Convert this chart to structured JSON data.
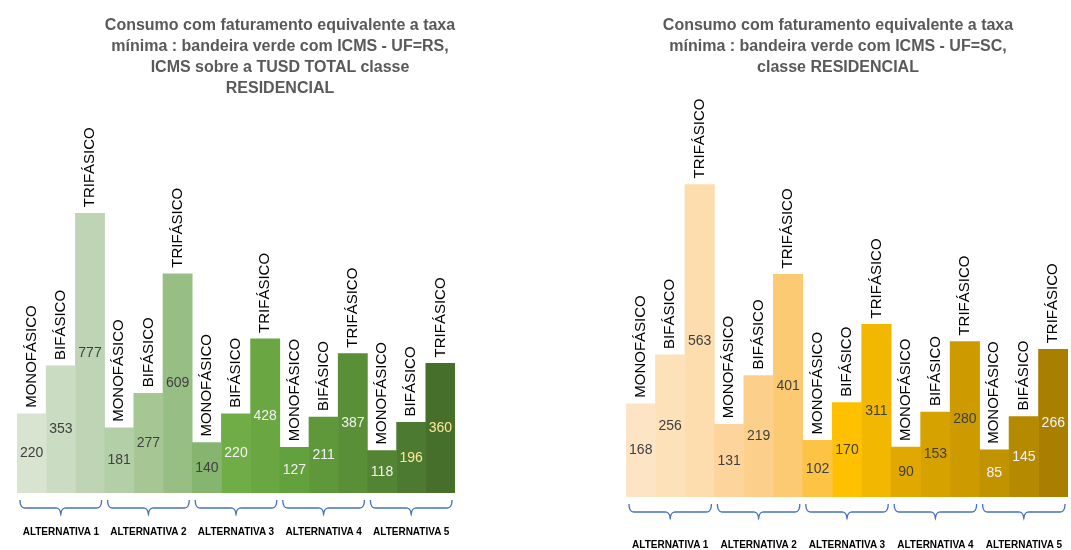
{
  "chart_data": [
    {
      "type": "bar",
      "title": "Consumo com faturamento equivalente a taxa mínima : bandeira verde com ICMS - UF=RS, ICMS sobre a TUSD TOTAL classe RESIDENCIAL",
      "categories": [
        "ALTERNATIVA 1",
        "ALTERNATIVA 2",
        "ALTERNATIVA 3",
        "ALTERNATIVA 4",
        "ALTERNATIVA 5"
      ],
      "series": [
        {
          "name": "MONOFÁSICO",
          "colors": [
            "#d8e4d0",
            "#b3cfa7",
            "#86b56f",
            "#63a03e",
            "#528434"
          ],
          "values": [
            220,
            181,
            140,
            127,
            118
          ]
        },
        {
          "name": "BIFÁSICO",
          "colors": [
            "#cadcc1",
            "#a6c794",
            "#70ad47",
            "#5f983b",
            "#4c7a30"
          ],
          "values": [
            353,
            277,
            220,
            211,
            196
          ]
        },
        {
          "name": "TRIFÁSICO",
          "colors": [
            "#bed4b4",
            "#97bf84",
            "#6aa742",
            "#598f37",
            "#466f2c"
          ],
          "values": [
            777,
            609,
            428,
            387,
            360
          ]
        }
      ],
      "data_labels": true
    },
    {
      "type": "bar",
      "title": "Consumo com faturamento equivalente a taxa mínima : bandeira verde com ICMS - UF=SC, classe RESIDENCIAL",
      "categories": [
        "ALTERNATIVA 1",
        "ALTERNATIVA 2",
        "ALTERNATIVA 3",
        "ALTERNATIVA 4",
        "ALTERNATIVA 5"
      ],
      "series": [
        {
          "name": "MONOFÁSICO",
          "colors": [
            "#fce4c5",
            "#fdd59c",
            "#fdc345",
            "#e0a800",
            "#c29300"
          ],
          "values": [
            168,
            131,
            102,
            90,
            85
          ]
        },
        {
          "name": "BIFÁSICO",
          "colors": [
            "#fde1b8",
            "#fcd08a",
            "#ffc000",
            "#d6a200",
            "#b68a00"
          ],
          "values": [
            256,
            219,
            170,
            153,
            145
          ]
        },
        {
          "name": "TRIFÁSICO",
          "colors": [
            "#fddcad",
            "#fcca73",
            "#f2b700",
            "#cd9b00",
            "#a97f00"
          ],
          "values": [
            563,
            401,
            311,
            280,
            266
          ]
        }
      ],
      "data_labels": true
    }
  ]
}
